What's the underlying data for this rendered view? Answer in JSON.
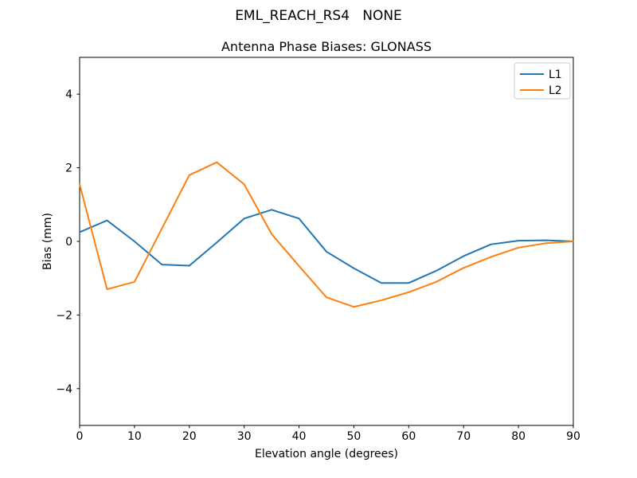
{
  "figure": {
    "suptitle": "EML_REACH_RS4   NONE",
    "title": "Antenna Phase Biases: GLONASS"
  },
  "chart_data": {
    "type": "line",
    "suptitle": "EML_REACH_RS4   NONE",
    "title": "Antenna Phase Biases: GLONASS",
    "xlabel": "Elevation angle (degrees)",
    "ylabel": "Bias (mm)",
    "xlim": [
      0,
      90
    ],
    "ylim": [
      -5,
      5
    ],
    "xticks": [
      0,
      10,
      20,
      30,
      40,
      50,
      60,
      70,
      80,
      90
    ],
    "yticks": [
      -4,
      -2,
      0,
      2,
      4
    ],
    "grid": false,
    "background": "#ffffff",
    "axis_color": "#000000",
    "legend": {
      "position": "upper right",
      "border_color": "#cccccc",
      "entries": [
        "L1",
        "L2"
      ]
    },
    "x": [
      0,
      5,
      10,
      15,
      20,
      25,
      30,
      35,
      40,
      45,
      50,
      55,
      60,
      65,
      70,
      75,
      80,
      85,
      90
    ],
    "series": [
      {
        "name": "L1",
        "color": "#1f77b4",
        "values": [
          0.25,
          0.57,
          0.0,
          -0.63,
          -0.66,
          -0.03,
          0.62,
          0.86,
          0.62,
          -0.28,
          -0.73,
          -1.13,
          -1.13,
          -0.8,
          -0.4,
          -0.08,
          0.02,
          0.03,
          0.0
        ]
      },
      {
        "name": "L2",
        "color": "#ff7f0e",
        "values": [
          1.55,
          -1.3,
          -1.1,
          0.35,
          1.8,
          2.15,
          1.55,
          0.2,
          -0.67,
          -1.52,
          -1.78,
          -1.6,
          -1.38,
          -1.1,
          -0.72,
          -0.42,
          -0.17,
          -0.05,
          0.0
        ]
      }
    ]
  }
}
